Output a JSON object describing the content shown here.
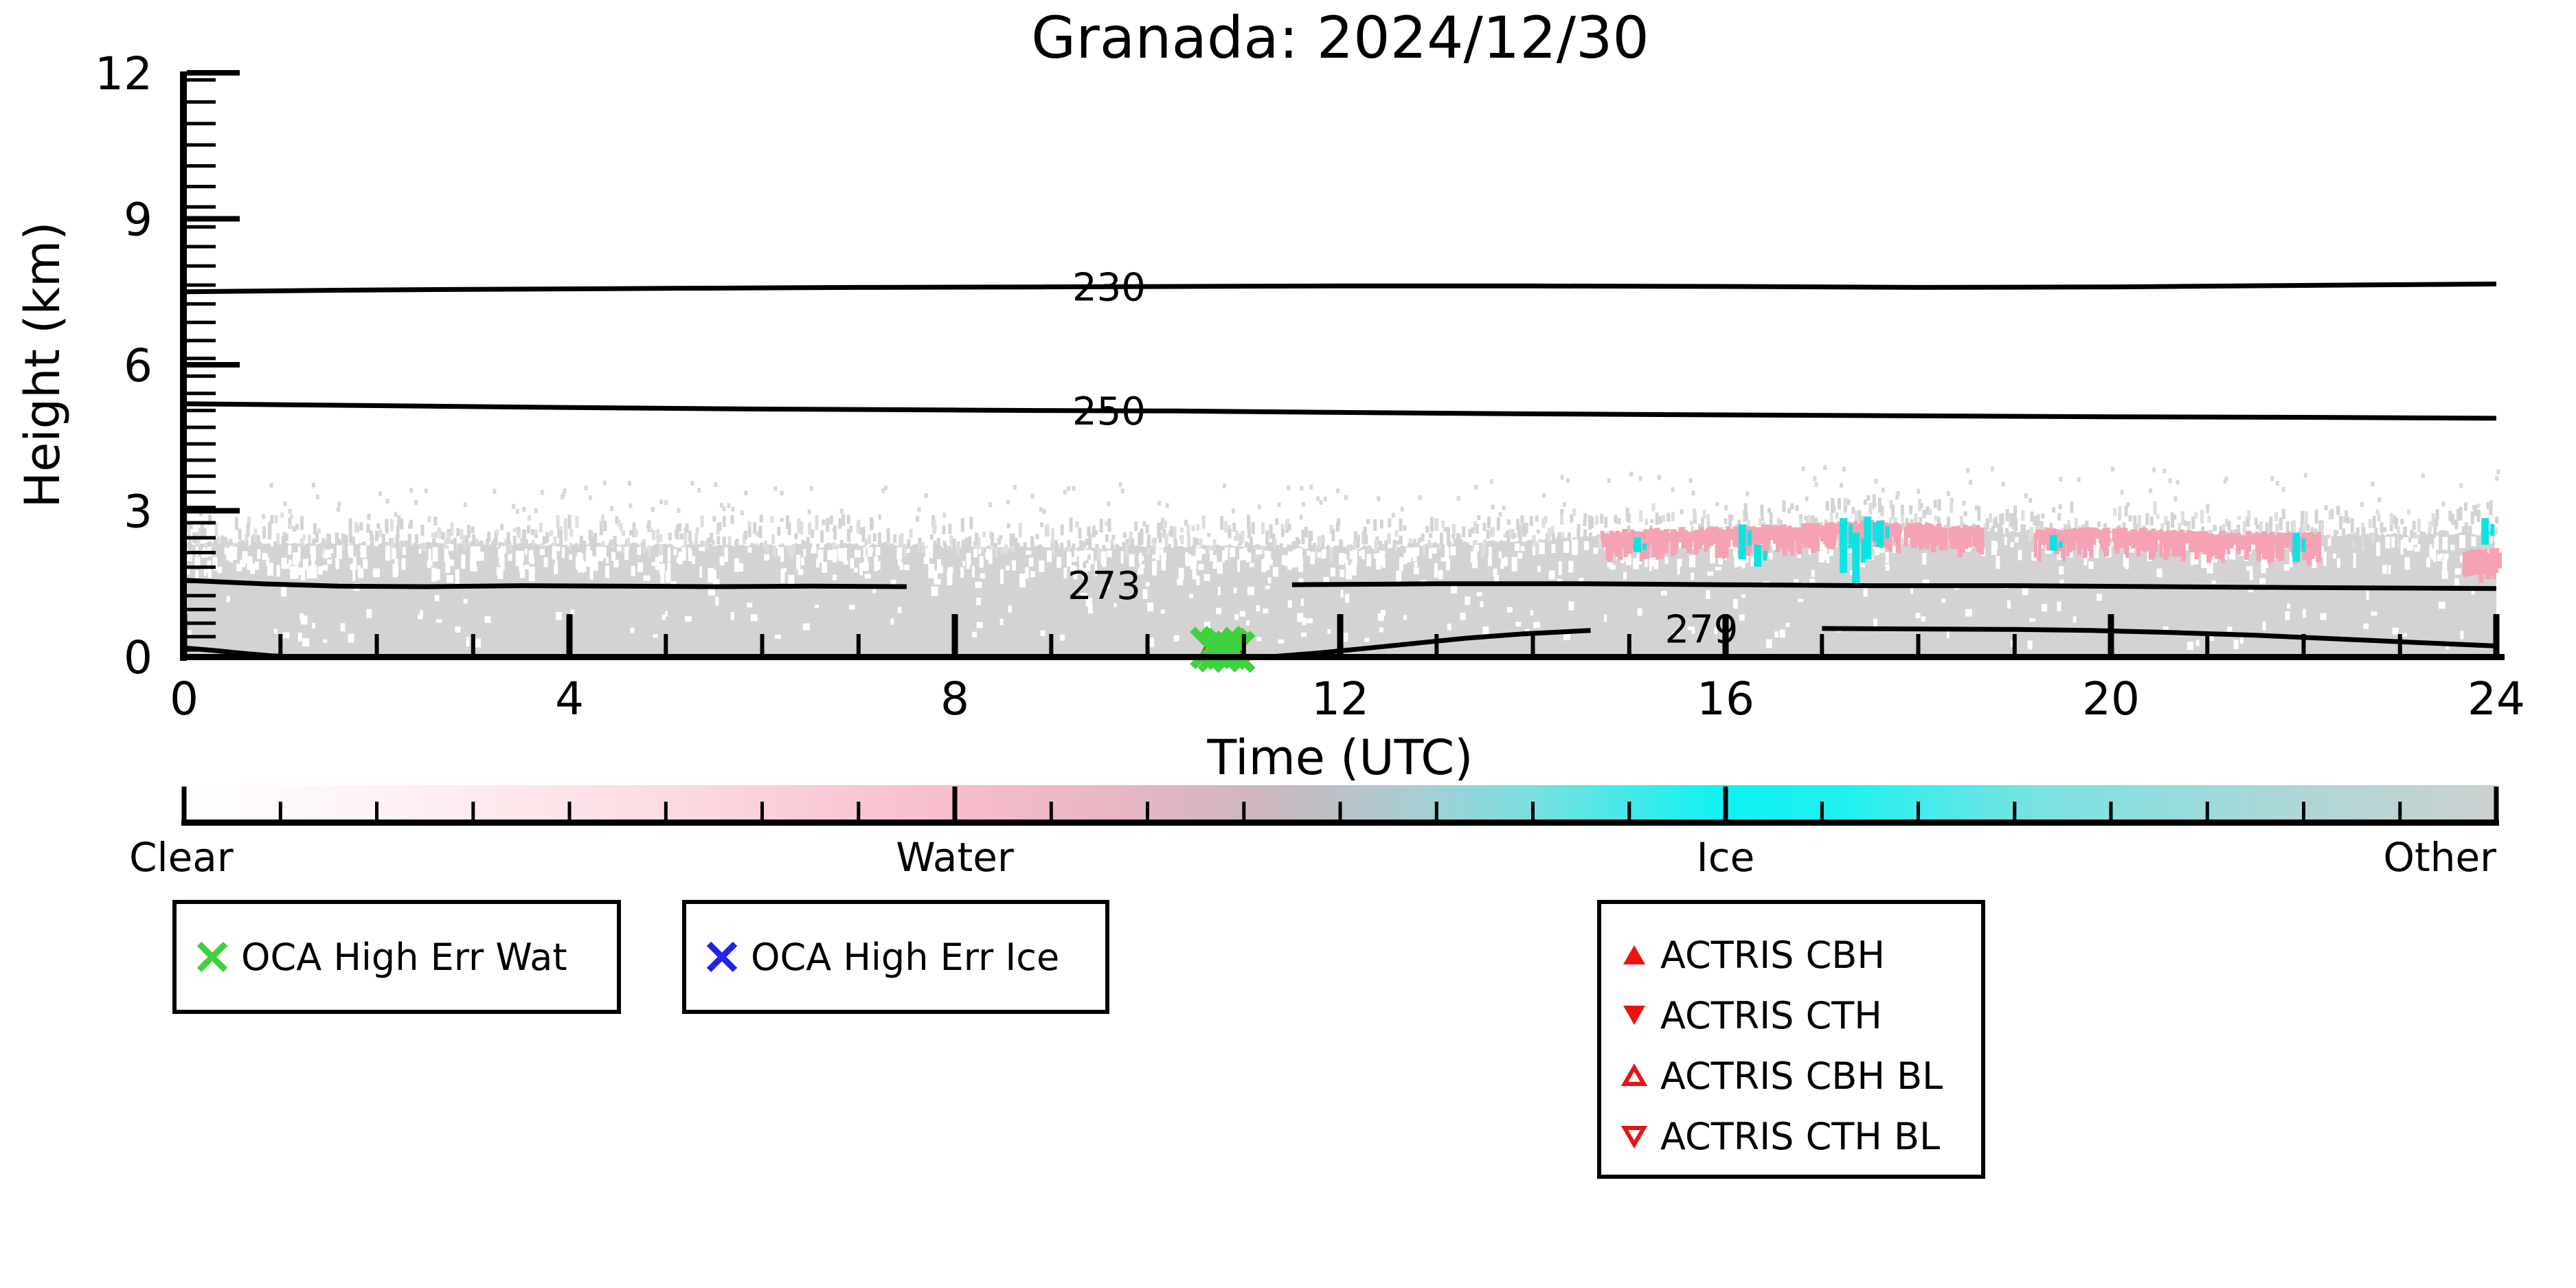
{
  "figure": {
    "title": "Granada: 2024/12/30",
    "background_color": "#ffffff"
  },
  "axes": {
    "x": {
      "label": "Time (UTC)",
      "min": 0,
      "max": 24,
      "major_ticks": [
        0,
        4,
        8,
        12,
        16,
        20,
        24
      ],
      "minor_tick_step_hours": 1
    },
    "y": {
      "label": "Height (km)",
      "min": 0,
      "max": 12,
      "major_ticks": [
        0,
        3,
        6,
        9,
        12
      ],
      "minor_rug": "model-level ticks, denser near surface"
    }
  },
  "colorbar": {
    "categories": [
      "Clear",
      "Water",
      "Ice",
      "Other"
    ],
    "category_positions": [
      0,
      0.3333,
      0.6667,
      1
    ],
    "n_minor_intervals": 24,
    "stops": [
      [
        0.0,
        "#ffffff"
      ],
      [
        0.08,
        "#fef3f5"
      ],
      [
        0.2,
        "#fcdde4"
      ],
      [
        0.3333,
        "#f8bccb"
      ],
      [
        0.4,
        "#eab6c4"
      ],
      [
        0.47,
        "#cbb7bf"
      ],
      [
        0.53,
        "#a9cdd1"
      ],
      [
        0.58,
        "#7ddfe0"
      ],
      [
        0.6667,
        "#0ef2f2"
      ],
      [
        0.72,
        "#22f0f0"
      ],
      [
        0.8,
        "#79e2e2"
      ],
      [
        0.9,
        "#a8d8d8"
      ],
      [
        1.0,
        "#cdd0d0"
      ]
    ]
  },
  "legends": {
    "oca_wat": {
      "label": "OCA High Err Wat",
      "marker": "x",
      "color": "#3ed23e"
    },
    "oca_ice": {
      "label": "OCA High Err Ice",
      "marker": "x",
      "color": "#2323e8"
    },
    "actris": {
      "color": "#ec1212",
      "items": [
        {
          "label": "ACTRIS CBH",
          "marker": "triangle-up-filled"
        },
        {
          "label": "ACTRIS CTH",
          "marker": "triangle-down-filled"
        },
        {
          "label": "ACTRIS CBH BL",
          "marker": "triangle-up-open"
        },
        {
          "label": "ACTRIS CTH BL",
          "marker": "triangle-down-open"
        }
      ]
    }
  },
  "chart_data": {
    "type": "heatmap",
    "title": "Granada: 2024/12/30",
    "xlabel": "Time (UTC)",
    "ylabel": "Height (km)",
    "x_range_hours": [
      0,
      24
    ],
    "y_range_km": [
      0,
      12
    ],
    "classification_colors": {
      "clear": "#ffffff",
      "cloud_other": "#d3d3d3",
      "water": "#f6a2b4",
      "ice": "#0ce4e4"
    },
    "cloud_layer": {
      "description": "Continuous grey (Other) cloud/aerosol mask from the surface up to a ragged top near 2.3-2.8 km all day, speckled fringe ~0.6 km above the top",
      "top_profile_t_h": [
        [
          0,
          2.3
        ],
        [
          1,
          2.32
        ],
        [
          2,
          2.32
        ],
        [
          3,
          2.3
        ],
        [
          4,
          2.3
        ],
        [
          5,
          2.29
        ],
        [
          6,
          2.28
        ],
        [
          7,
          2.29
        ],
        [
          8,
          2.26
        ],
        [
          9,
          2.22
        ],
        [
          10,
          2.25
        ],
        [
          11,
          2.28
        ],
        [
          12,
          2.24
        ],
        [
          13,
          2.3
        ],
        [
          14,
          2.38
        ],
        [
          14.5,
          2.45
        ],
        [
          15,
          2.5
        ],
        [
          16,
          2.55
        ],
        [
          17,
          2.62
        ],
        [
          17.5,
          2.7
        ],
        [
          18,
          2.62
        ],
        [
          19,
          2.55
        ],
        [
          20,
          2.58
        ],
        [
          21,
          2.52
        ],
        [
          22,
          2.48
        ],
        [
          23,
          2.5
        ],
        [
          24,
          2.55
        ]
      ],
      "fringe_km_above_top": 0.65
    },
    "water_bands": [
      {
        "t_start": 14.7,
        "t_end": 18.65,
        "top_offset_km": 0.0,
        "density": 0.85
      },
      {
        "t_start": 19.2,
        "t_end": 22.15,
        "top_offset_km": -0.05,
        "density": 0.8
      },
      {
        "t_start": 23.65,
        "t_end": 24.0,
        "top_offset_km": -0.45,
        "density": 0.75
      }
    ],
    "ice_streaks": [
      {
        "t": 15.08,
        "h_bottom": 2.15,
        "h_top": 2.45
      },
      {
        "t": 16.17,
        "h_bottom": 2.0,
        "h_top": 2.72
      },
      {
        "t": 16.33,
        "h_bottom": 1.85,
        "h_top": 2.3
      },
      {
        "t": 17.22,
        "h_bottom": 1.72,
        "h_top": 2.85
      },
      {
        "t": 17.35,
        "h_bottom": 1.45,
        "h_top": 2.55
      },
      {
        "t": 17.47,
        "h_bottom": 2.0,
        "h_top": 2.88
      },
      {
        "t": 17.6,
        "h_bottom": 2.25,
        "h_top": 2.8
      },
      {
        "t": 19.4,
        "h_bottom": 2.18,
        "h_top": 2.5
      },
      {
        "t": 21.92,
        "h_bottom": 1.95,
        "h_top": 2.55
      },
      {
        "t": 23.88,
        "h_bottom": 2.3,
        "h_top": 2.85
      }
    ],
    "temperature_contours_K": [
      {
        "label": "230",
        "label_t": 9.6,
        "points": [
          [
            0,
            7.5
          ],
          [
            1.5,
            7.53
          ],
          [
            3,
            7.55
          ],
          [
            5,
            7.57
          ],
          [
            7,
            7.59
          ],
          [
            8.9,
            7.6
          ],
          [
            10.3,
            7.61
          ],
          [
            12,
            7.62
          ],
          [
            14,
            7.62
          ],
          [
            16,
            7.61
          ],
          [
            18,
            7.59
          ],
          [
            20,
            7.6
          ],
          [
            22,
            7.63
          ],
          [
            24,
            7.66
          ]
        ]
      },
      {
        "label": "250",
        "label_t": 9.6,
        "points": [
          [
            0,
            5.2
          ],
          [
            2,
            5.16
          ],
          [
            4,
            5.12
          ],
          [
            6,
            5.09
          ],
          [
            8,
            5.07
          ],
          [
            8.9,
            5.06
          ],
          [
            10.3,
            5.05
          ],
          [
            12,
            5.02
          ],
          [
            14,
            4.99
          ],
          [
            16,
            4.97
          ],
          [
            18,
            4.95
          ],
          [
            20,
            4.93
          ],
          [
            22,
            4.92
          ],
          [
            24,
            4.9
          ]
        ]
      },
      {
        "label": "273",
        "label_t": 9.55,
        "points": [
          [
            0,
            1.57
          ],
          [
            0.8,
            1.5
          ],
          [
            1.6,
            1.45
          ],
          [
            2.5,
            1.44
          ],
          [
            3.5,
            1.46
          ],
          [
            4.5,
            1.45
          ],
          [
            5.5,
            1.44
          ],
          [
            6.5,
            1.45
          ],
          [
            7.5,
            1.44
          ],
          [
            8.9,
            1.46
          ],
          [
            10.2,
            1.47
          ],
          [
            11.5,
            1.48
          ],
          [
            13,
            1.5
          ],
          [
            14.5,
            1.5
          ],
          [
            16,
            1.48
          ],
          [
            17.5,
            1.46
          ],
          [
            19,
            1.46
          ],
          [
            20.5,
            1.44
          ],
          [
            22,
            1.42
          ],
          [
            24,
            1.4
          ]
        ]
      },
      {
        "label": "279",
        "label_t": 15.75,
        "points": [
          [
            11.35,
            0.01
          ],
          [
            11.8,
            0.08
          ],
          [
            12.3,
            0.18
          ],
          [
            12.8,
            0.28
          ],
          [
            13.3,
            0.38
          ],
          [
            13.9,
            0.47
          ],
          [
            14.6,
            0.54
          ],
          [
            15.3,
            0.57
          ],
          [
            16.2,
            0.58
          ],
          [
            17,
            0.58
          ],
          [
            18,
            0.57
          ],
          [
            19,
            0.56
          ],
          [
            19.8,
            0.54
          ],
          [
            20.6,
            0.5
          ],
          [
            21.5,
            0.44
          ],
          [
            22.3,
            0.37
          ],
          [
            23.2,
            0.29
          ],
          [
            24,
            0.22
          ]
        ]
      },
      {
        "label": "",
        "label_t": null,
        "points": [
          [
            0,
            0.18
          ],
          [
            0.3,
            0.13
          ],
          [
            0.6,
            0.07
          ],
          [
            0.9,
            0.02
          ],
          [
            1.05,
            0.005
          ]
        ]
      }
    ],
    "oca_high_err_wat_points": [
      {
        "t": 10.66,
        "h": 0.18
      },
      {
        "t": 10.74,
        "h": 0.11
      },
      {
        "t": 10.82,
        "h": 0.16
      },
      {
        "t": 10.9,
        "h": 0.1
      },
      {
        "t": 10.78,
        "h": 0.2
      }
    ],
    "oca_high_err_ice_points": [],
    "actris_cbh_points": [
      {
        "t": 10.6,
        "h": 0.05
      },
      {
        "t": 10.8,
        "h": 0.03
      },
      {
        "t": 10.97,
        "h": 0.06
      }
    ],
    "actris_cth_points": [],
    "actris_cbh_bl_points": [],
    "actris_cth_bl_points": []
  }
}
